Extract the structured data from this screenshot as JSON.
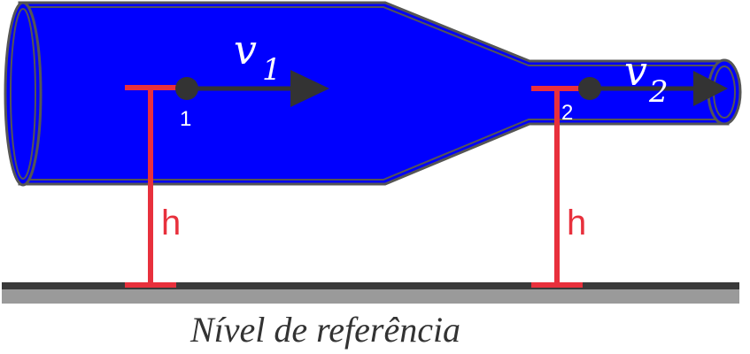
{
  "velocity_1": {
    "symbol": "v",
    "subscript": "1"
  },
  "velocity_2": {
    "symbol": "v",
    "subscript": "2"
  },
  "point_1_label": "1",
  "point_2_label": "2",
  "height_label_1": "h",
  "height_label_2": "h",
  "reference_level_label": "Nível de referência",
  "colors": {
    "fluid": "#0000ff",
    "pipe_outline": "#555555",
    "arrow": "#333333",
    "height_marker": "#e8303c",
    "ground_dark": "#3a3a3a",
    "ground_light": "#9a9a9a"
  }
}
